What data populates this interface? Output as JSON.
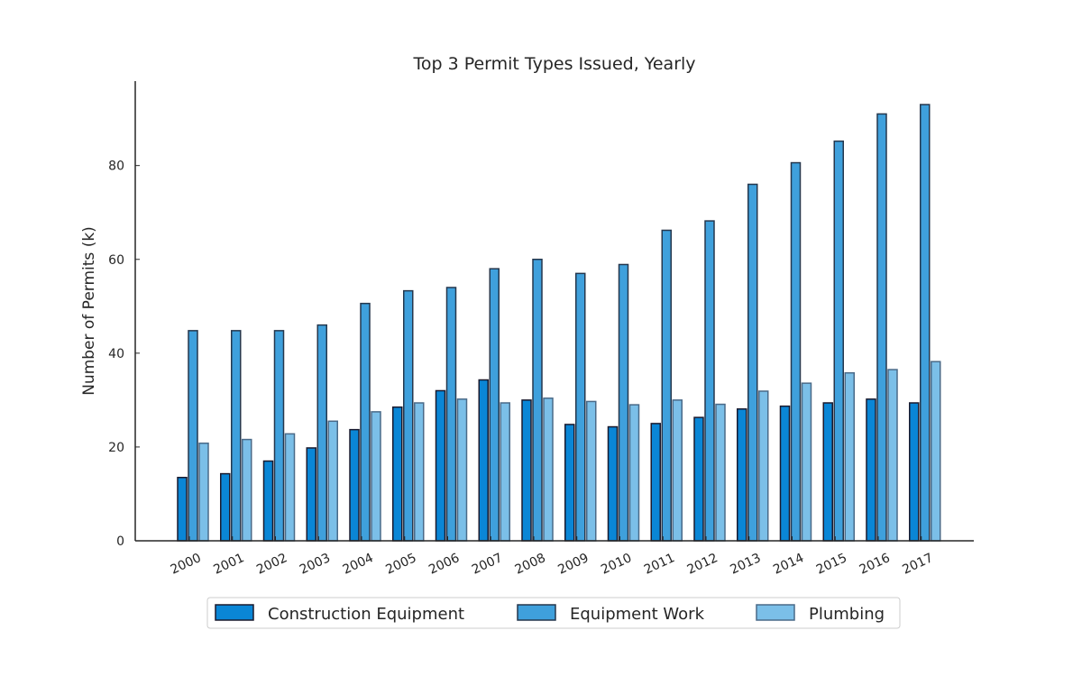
{
  "chart_data": {
    "type": "bar",
    "title": "Top 3 Permit Types Issued, Yearly",
    "xlabel": "",
    "ylabel": "Number of Permits (k)",
    "ylim": [
      0,
      98
    ],
    "yticks": [
      0,
      20,
      40,
      60,
      80
    ],
    "grid": false,
    "legend_position": "bottom-center",
    "categories": [
      "2000",
      "2001",
      "2002",
      "2003",
      "2004",
      "2005",
      "2006",
      "2007",
      "2008",
      "2009",
      "2010",
      "2011",
      "2012",
      "2013",
      "2014",
      "2015",
      "2016",
      "2017"
    ],
    "series": [
      {
        "name": "Construction Equipment",
        "color": "#0a86d6",
        "values": [
          13.5,
          14.3,
          17.0,
          19.8,
          23.7,
          28.5,
          32.0,
          34.3,
          30.0,
          24.8,
          24.3,
          25.0,
          26.3,
          28.1,
          28.7,
          29.4,
          30.2,
          29.4
        ]
      },
      {
        "name": "Equipment Work",
        "color": "#3fa0dc",
        "values": [
          44.8,
          44.8,
          44.8,
          46.0,
          50.6,
          53.3,
          54.0,
          58.0,
          60.0,
          57.0,
          58.9,
          66.2,
          68.2,
          76.0,
          80.6,
          85.2,
          91.0,
          93.0
        ]
      },
      {
        "name": "Plumbing",
        "color": "#7bbfe8",
        "values": [
          20.8,
          21.6,
          22.8,
          25.5,
          27.5,
          29.4,
          30.2,
          29.4,
          30.4,
          29.7,
          29.0,
          30.0,
          29.1,
          31.9,
          33.6,
          35.8,
          36.5,
          38.2
        ]
      }
    ]
  }
}
